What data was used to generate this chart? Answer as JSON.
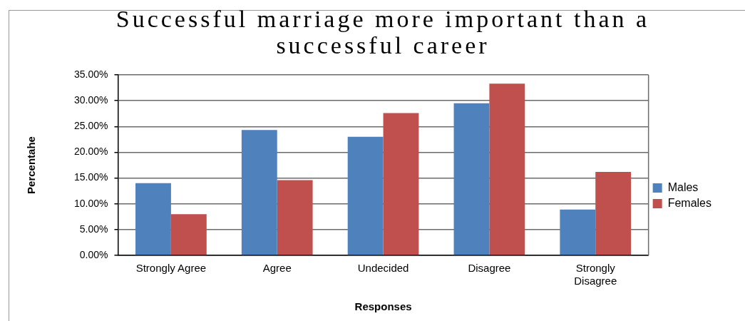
{
  "chart_data": {
    "type": "bar",
    "title": "Successful marriage more important than a successful career",
    "xlabel": "Responses",
    "ylabel": "Percentahe",
    "categories": [
      "Strongly Agree",
      "Agree",
      "Undecided",
      "Disagree",
      "Strongly Disagree"
    ],
    "series": [
      {
        "name": "Males",
        "color": "#4f81bd",
        "values": [
          14.0,
          24.3,
          23.0,
          29.5,
          8.9
        ]
      },
      {
        "name": "Females",
        "color": "#c0504d",
        "values": [
          8.0,
          14.6,
          27.6,
          33.3,
          16.2
        ]
      }
    ],
    "ylim": [
      0,
      35
    ],
    "yticks": [
      {
        "value": 0,
        "label": "0.00%"
      },
      {
        "value": 5,
        "label": "5.00%"
      },
      {
        "value": 10,
        "label": "10.00%"
      },
      {
        "value": 15,
        "label": "15.00%"
      },
      {
        "value": 20,
        "label": "20.00%"
      },
      {
        "value": 25,
        "label": "25.00%"
      },
      {
        "value": 30,
        "label": "30.00%"
      },
      {
        "value": 35,
        "label": "35.00%"
      }
    ],
    "grid": "y",
    "legend": "right"
  }
}
